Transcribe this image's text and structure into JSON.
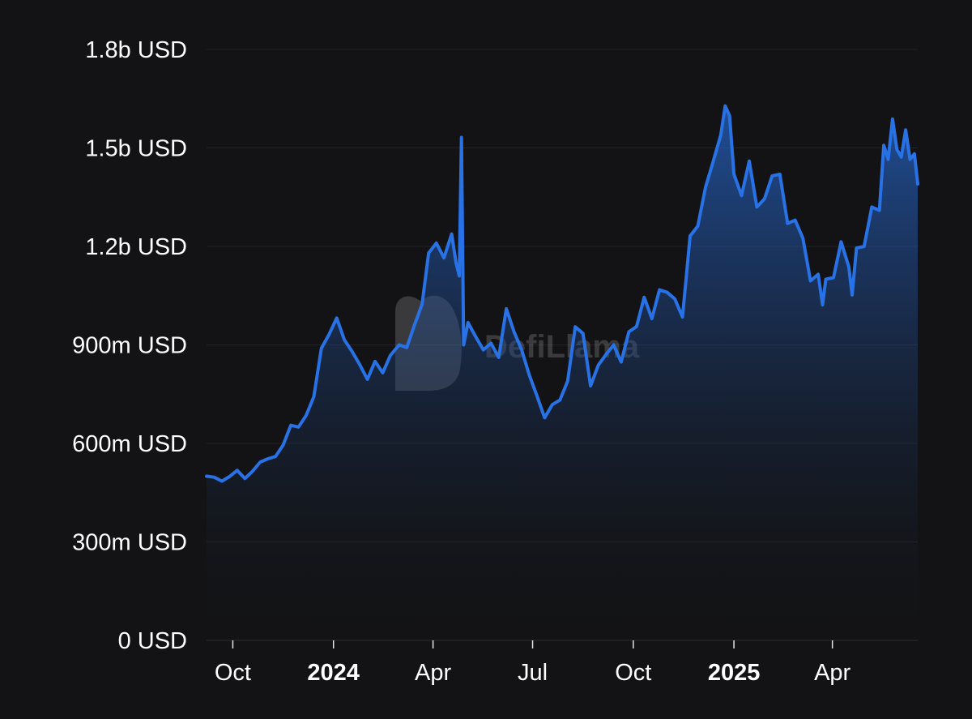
{
  "chart_data": {
    "type": "area",
    "title": "",
    "xlabel": "",
    "ylabel": "",
    "yunit": "USD",
    "ylim": [
      0,
      1800000000
    ],
    "xlim": [
      "2023-09-07",
      "2025-06-18"
    ],
    "grid": true,
    "legend": "none",
    "color": "#2872e6",
    "y_ticks": [
      {
        "value": 0,
        "label": "0 USD"
      },
      {
        "value": 300000000,
        "label": "300m USD"
      },
      {
        "value": 600000000,
        "label": "600m USD"
      },
      {
        "value": 900000000,
        "label": "900m USD"
      },
      {
        "value": 1200000000,
        "label": "1.2b USD"
      },
      {
        "value": 1500000000,
        "label": "1.5b USD"
      },
      {
        "value": 1800000000,
        "label": "1.8b USD"
      }
    ],
    "x_ticks": [
      {
        "date": "2023-10-01",
        "label": "Oct",
        "bold": false
      },
      {
        "date": "2024-01-01",
        "label": "2024",
        "bold": true
      },
      {
        "date": "2024-04-01",
        "label": "Apr",
        "bold": false
      },
      {
        "date": "2024-07-01",
        "label": "Jul",
        "bold": false
      },
      {
        "date": "2024-10-01",
        "label": "Oct",
        "bold": false
      },
      {
        "date": "2025-01-01",
        "label": "2025",
        "bold": true
      },
      {
        "date": "2025-04-01",
        "label": "Apr",
        "bold": false
      }
    ],
    "points": [
      [
        "2023-09-07",
        500000000
      ],
      [
        "2023-09-14",
        497000000
      ],
      [
        "2023-09-21",
        485000000
      ],
      [
        "2023-09-28",
        499000000
      ],
      [
        "2023-10-05",
        518000000
      ],
      [
        "2023-10-12",
        493000000
      ],
      [
        "2023-10-19",
        515000000
      ],
      [
        "2023-10-26",
        543000000
      ],
      [
        "2023-11-02",
        553000000
      ],
      [
        "2023-11-09",
        560000000
      ],
      [
        "2023-11-16",
        595000000
      ],
      [
        "2023-11-23",
        655000000
      ],
      [
        "2023-11-30",
        650000000
      ],
      [
        "2023-12-07",
        685000000
      ],
      [
        "2023-12-14",
        742000000
      ],
      [
        "2023-12-21",
        890000000
      ],
      [
        "2023-12-28",
        932000000
      ],
      [
        "2024-01-04",
        982000000
      ],
      [
        "2024-01-11",
        915000000
      ],
      [
        "2024-01-18",
        880000000
      ],
      [
        "2024-01-25",
        840000000
      ],
      [
        "2024-02-01",
        795000000
      ],
      [
        "2024-02-08",
        850000000
      ],
      [
        "2024-02-15",
        815000000
      ],
      [
        "2024-02-22",
        868000000
      ],
      [
        "2024-03-01",
        900000000
      ],
      [
        "2024-03-08",
        892000000
      ],
      [
        "2024-03-15",
        960000000
      ],
      [
        "2024-03-22",
        1024000000
      ],
      [
        "2024-03-28",
        1180000000
      ],
      [
        "2024-04-04",
        1210000000
      ],
      [
        "2024-04-11",
        1165000000
      ],
      [
        "2024-04-18",
        1238000000
      ],
      [
        "2024-04-22",
        1150000000
      ],
      [
        "2024-04-25",
        1110000000
      ],
      [
        "2024-04-27",
        1532000000
      ],
      [
        "2024-04-29",
        900000000
      ],
      [
        "2024-05-03",
        968000000
      ],
      [
        "2024-05-10",
        925000000
      ],
      [
        "2024-05-17",
        885000000
      ],
      [
        "2024-05-24",
        905000000
      ],
      [
        "2024-05-31",
        862000000
      ],
      [
        "2024-06-07",
        1010000000
      ],
      [
        "2024-06-14",
        940000000
      ],
      [
        "2024-06-21",
        885000000
      ],
      [
        "2024-06-28",
        808000000
      ],
      [
        "2024-07-05",
        745000000
      ],
      [
        "2024-07-12",
        678000000
      ],
      [
        "2024-07-19",
        718000000
      ],
      [
        "2024-07-26",
        732000000
      ],
      [
        "2024-08-02",
        790000000
      ],
      [
        "2024-08-09",
        955000000
      ],
      [
        "2024-08-16",
        935000000
      ],
      [
        "2024-08-23",
        775000000
      ],
      [
        "2024-08-30",
        838000000
      ],
      [
        "2024-09-06",
        870000000
      ],
      [
        "2024-09-13",
        900000000
      ],
      [
        "2024-09-20",
        848000000
      ],
      [
        "2024-09-27",
        940000000
      ],
      [
        "2024-10-04",
        956000000
      ],
      [
        "2024-10-11",
        1045000000
      ],
      [
        "2024-10-18",
        980000000
      ],
      [
        "2024-10-25",
        1068000000
      ],
      [
        "2024-11-01",
        1060000000
      ],
      [
        "2024-11-08",
        1040000000
      ],
      [
        "2024-11-15",
        985000000
      ],
      [
        "2024-11-22",
        1232000000
      ],
      [
        "2024-11-29",
        1262000000
      ],
      [
        "2024-12-06",
        1380000000
      ],
      [
        "2024-12-13",
        1458000000
      ],
      [
        "2024-12-20",
        1540000000
      ],
      [
        "2024-12-24",
        1628000000
      ],
      [
        "2024-12-28",
        1598000000
      ],
      [
        "2025-01-01",
        1420000000
      ],
      [
        "2025-01-08",
        1355000000
      ],
      [
        "2025-01-15",
        1460000000
      ],
      [
        "2025-01-22",
        1320000000
      ],
      [
        "2025-01-29",
        1345000000
      ],
      [
        "2025-02-05",
        1415000000
      ],
      [
        "2025-02-12",
        1420000000
      ],
      [
        "2025-02-19",
        1270000000
      ],
      [
        "2025-02-26",
        1280000000
      ],
      [
        "2025-03-05",
        1225000000
      ],
      [
        "2025-03-12",
        1095000000
      ],
      [
        "2025-03-19",
        1115000000
      ],
      [
        "2025-03-23",
        1022000000
      ],
      [
        "2025-03-26",
        1100000000
      ],
      [
        "2025-04-02",
        1105000000
      ],
      [
        "2025-04-09",
        1214000000
      ],
      [
        "2025-04-16",
        1138000000
      ],
      [
        "2025-04-19",
        1052000000
      ],
      [
        "2025-04-23",
        1195000000
      ],
      [
        "2025-04-30",
        1200000000
      ],
      [
        "2025-05-07",
        1320000000
      ],
      [
        "2025-05-14",
        1310000000
      ],
      [
        "2025-05-18",
        1508000000
      ],
      [
        "2025-05-22",
        1465000000
      ],
      [
        "2025-05-26",
        1588000000
      ],
      [
        "2025-05-30",
        1495000000
      ],
      [
        "2025-06-03",
        1472000000
      ],
      [
        "2025-06-07",
        1555000000
      ],
      [
        "2025-06-11",
        1465000000
      ],
      [
        "2025-06-15",
        1482000000
      ],
      [
        "2025-06-18",
        1390000000
      ]
    ]
  },
  "watermark": {
    "text": "DefiLlama",
    "icon": "llama-icon"
  }
}
